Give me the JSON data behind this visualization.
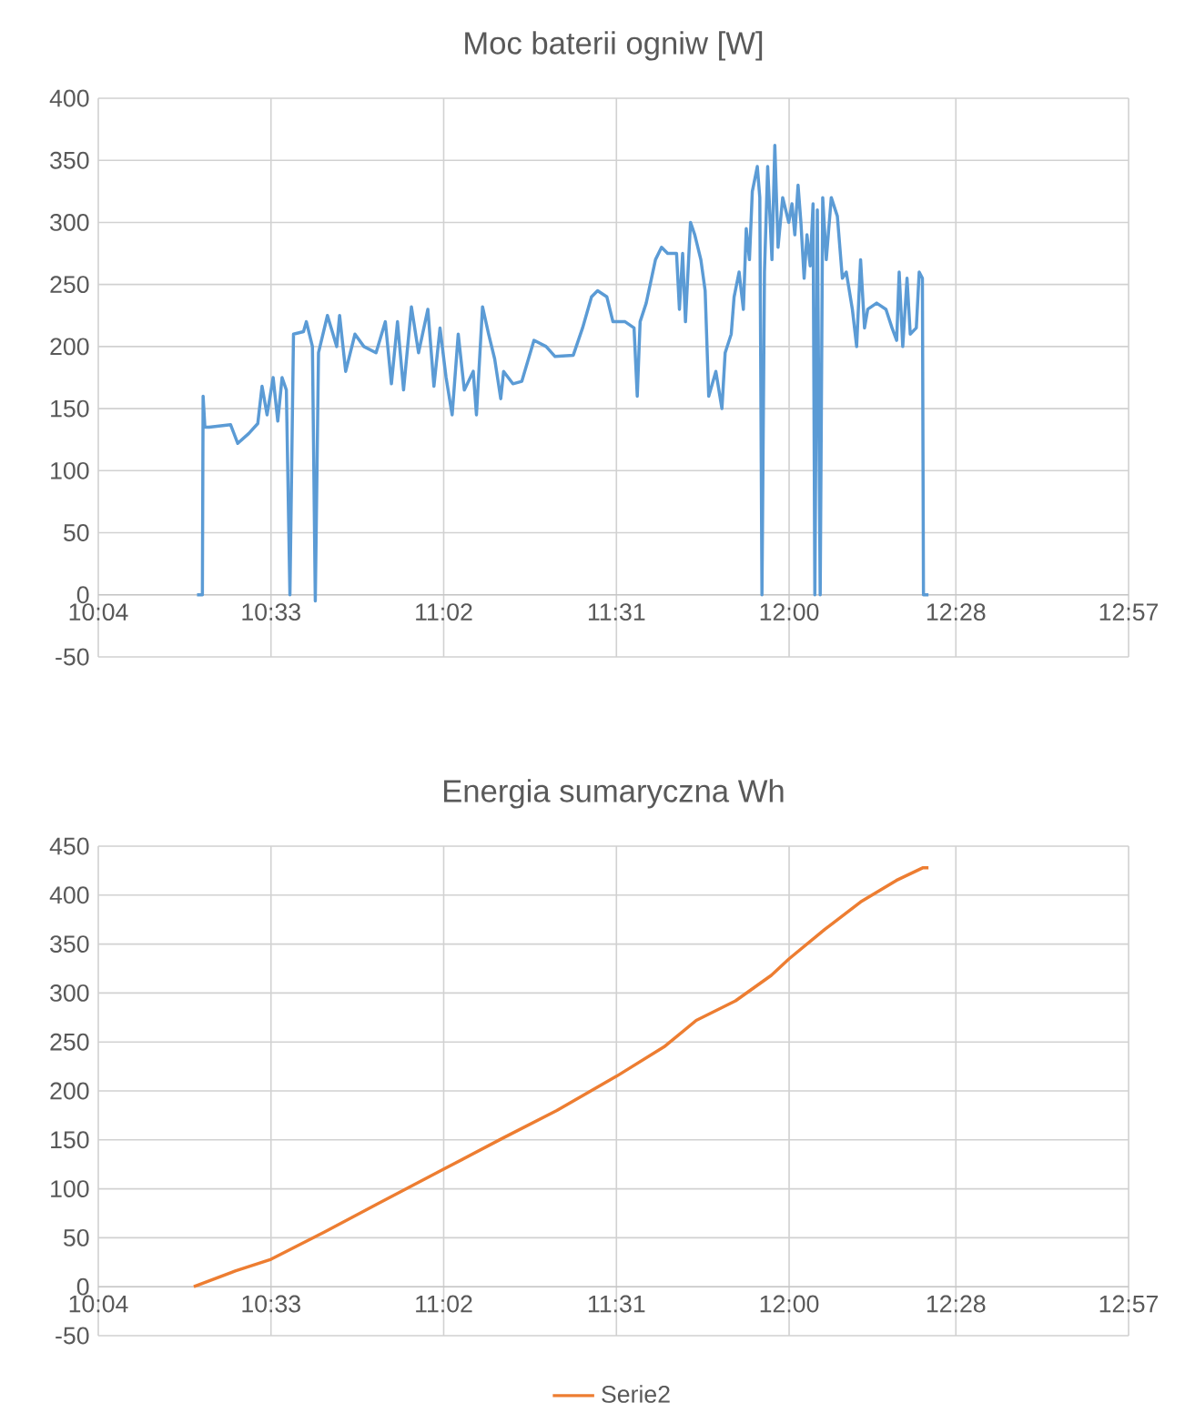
{
  "chart_data": [
    {
      "type": "line",
      "title": "Moc baterii ogniw [W]",
      "x": [
        10.343,
        10.358,
        10.36,
        10.365,
        10.377,
        10.437,
        10.457,
        10.488,
        10.513,
        10.525,
        10.539,
        10.556,
        10.569,
        10.581,
        10.593,
        10.603,
        10.613,
        10.641,
        10.649,
        10.666,
        10.674,
        10.683,
        10.708,
        10.734,
        10.742,
        10.759,
        10.785,
        10.81,
        10.844,
        10.87,
        10.887,
        10.904,
        10.921,
        10.943,
        10.963,
        10.989,
        11.006,
        11.023,
        11.04,
        11.057,
        11.074,
        11.091,
        11.116,
        11.125,
        11.142,
        11.159,
        11.176,
        11.193,
        11.201,
        11.227,
        11.252,
        11.286,
        11.32,
        11.345,
        11.396,
        11.422,
        11.447,
        11.464,
        11.49,
        11.507,
        11.541,
        11.566,
        11.575,
        11.583,
        11.6,
        11.626,
        11.643,
        11.66,
        11.685,
        11.693,
        11.702,
        11.71,
        11.724,
        11.736,
        11.753,
        11.765,
        11.775,
        11.795,
        11.812,
        11.821,
        11.838,
        11.846,
        11.86,
        11.872,
        11.88,
        11.889,
        11.897,
        11.911,
        11.918,
        11.924,
        11.931,
        11.94,
        11.952,
        11.96,
        11.969,
        11.982,
        11.999,
        12.008,
        12.016,
        12.025,
        12.033,
        12.042,
        12.05,
        12.059,
        12.067,
        12.072,
        12.079,
        12.087,
        12.094,
        12.104,
        12.118,
        12.135,
        12.149,
        12.16,
        12.177,
        12.189,
        12.2,
        12.211,
        12.22,
        12.245,
        12.271,
        12.288,
        12.301,
        12.308,
        12.318,
        12.33,
        12.339,
        12.356,
        12.364,
        12.373,
        12.376,
        12.39
      ],
      "series": [
        {
          "color": "#5b9bd5",
          "values": [
            0,
            0,
            160,
            135,
            135,
            137,
            122,
            130,
            138,
            168,
            145,
            175,
            140,
            175,
            165,
            0,
            210,
            212,
            220,
            200,
            -5,
            195,
            225,
            200,
            225,
            180,
            210,
            200,
            195,
            220,
            170,
            220,
            165,
            232,
            195,
            230,
            168,
            215,
            175,
            145,
            210,
            165,
            180,
            145,
            232,
            210,
            190,
            158,
            180,
            170,
            172,
            205,
            200,
            192,
            193,
            215,
            240,
            245,
            240,
            220,
            220,
            215,
            160,
            220,
            235,
            270,
            280,
            275,
            275,
            230,
            275,
            220,
            300,
            290,
            270,
            245,
            160,
            180,
            150,
            195,
            210,
            240,
            260,
            230,
            295,
            270,
            325,
            345,
            320,
            0,
            260,
            345,
            270,
            362,
            280,
            320,
            300,
            315,
            290,
            330,
            300,
            255,
            290,
            265,
            315,
            0,
            310,
            0,
            320,
            270,
            320,
            305,
            255,
            260,
            230,
            200,
            270,
            215,
            230,
            235,
            230,
            215,
            205,
            260,
            200,
            255,
            210,
            215,
            260,
            255,
            0,
            0
          ]
        }
      ],
      "xlim": [
        10.0667,
        12.95
      ],
      "xticks": [
        {
          "value": 10.0667,
          "label": "10:04"
        },
        {
          "value": 10.55,
          "label": "10:33"
        },
        {
          "value": 11.0333,
          "label": "11:02"
        },
        {
          "value": 11.5167,
          "label": "11:31"
        },
        {
          "value": 12.0,
          "label": "12:00"
        },
        {
          "value": 12.4667,
          "label": "12:28"
        },
        {
          "value": 12.95,
          "label": "12:57"
        }
      ],
      "ylim": [
        -50,
        400
      ],
      "yticks": [
        -50,
        0,
        50,
        100,
        150,
        200,
        250,
        300,
        350,
        400
      ],
      "grid": true
    },
    {
      "type": "line",
      "title": "Energia sumaryczna Wh",
      "x": [
        10.334,
        10.45,
        10.55,
        10.7,
        10.85,
        11.033,
        11.2,
        11.35,
        11.517,
        11.65,
        11.74,
        11.85,
        11.95,
        12.0,
        12.1,
        12.2,
        12.3,
        12.375,
        12.39
      ],
      "series": [
        {
          "name": "Serie2",
          "color": "#ed7d31",
          "values": [
            0,
            16,
            28,
            56,
            85,
            120,
            152,
            180,
            215,
            245,
            272,
            292,
            318,
            335,
            365,
            393,
            415,
            428,
            428
          ]
        }
      ],
      "xlim": [
        10.0667,
        12.95
      ],
      "xticks": [
        {
          "value": 10.0667,
          "label": "10:04"
        },
        {
          "value": 10.55,
          "label": "10:33"
        },
        {
          "value": 11.0333,
          "label": "11:02"
        },
        {
          "value": 11.5167,
          "label": "11:31"
        },
        {
          "value": 12.0,
          "label": "12:00"
        },
        {
          "value": 12.4667,
          "label": "12:28"
        },
        {
          "value": 12.95,
          "label": "12:57"
        }
      ],
      "ylim": [
        -50,
        450
      ],
      "yticks": [
        -50,
        0,
        50,
        100,
        150,
        200,
        250,
        300,
        350,
        400,
        450
      ],
      "grid": true,
      "legend": "bottom"
    }
  ]
}
